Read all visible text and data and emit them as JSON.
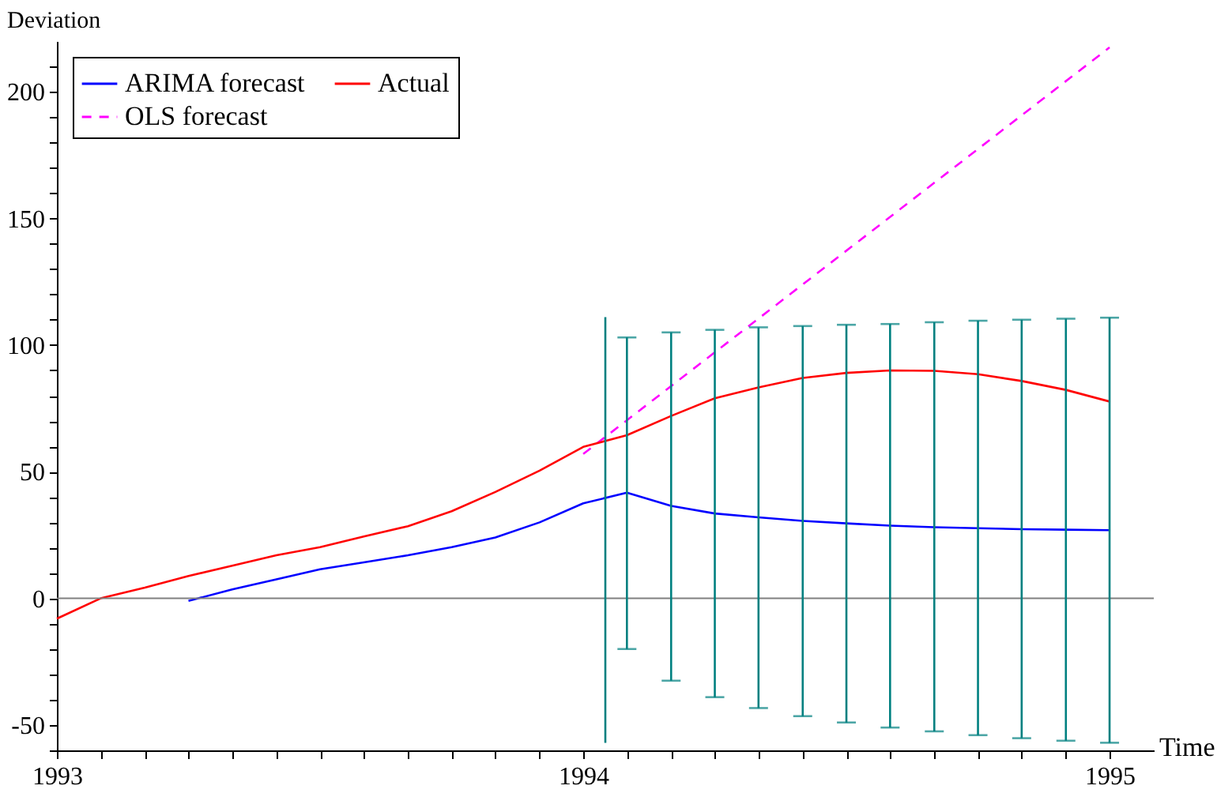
{
  "chart_data": {
    "type": "line",
    "xlabel": "Time",
    "ylabel": "Deviation",
    "xlim": [
      1993,
      1995.084
    ],
    "ylim": [
      -60,
      220
    ],
    "xticks": [
      1993,
      {
        "value": 1993.083,
        "label": null
      },
      {
        "value": 1993.167,
        "label": null
      },
      {
        "value": 1993.25,
        "label": null
      },
      {
        "value": 1993.333,
        "label": null
      },
      {
        "value": 1993.417,
        "label": null
      },
      {
        "value": 1993.5,
        "label": null
      },
      {
        "value": 1993.583,
        "label": null
      },
      {
        "value": 1993.667,
        "label": null
      },
      {
        "value": 1993.75,
        "label": null
      },
      {
        "value": 1993.833,
        "label": null
      },
      {
        "value": 1993.917,
        "label": null
      },
      1994,
      {
        "value": 1994.083,
        "label": null
      },
      {
        "value": 1994.167,
        "label": null
      },
      {
        "value": 1994.25,
        "label": null
      },
      {
        "value": 1994.333,
        "label": null
      },
      {
        "value": 1994.417,
        "label": null
      },
      {
        "value": 1994.5,
        "label": null
      },
      {
        "value": 1994.583,
        "label": null
      },
      {
        "value": 1994.667,
        "label": null
      },
      {
        "value": 1994.75,
        "label": null
      },
      {
        "value": 1994.833,
        "label": null
      },
      {
        "value": 1994.917,
        "label": null
      },
      1995
    ],
    "yticks": [
      {
        "value": -60,
        "label": null
      },
      -50,
      {
        "value": -40,
        "label": null
      },
      {
        "value": -30,
        "label": null
      },
      {
        "value": -20,
        "label": null
      },
      {
        "value": -10,
        "label": null
      },
      0,
      {
        "value": 10,
        "label": null
      },
      {
        "value": 20,
        "label": null
      },
      {
        "value": 30,
        "label": null
      },
      {
        "value": 40,
        "label": null
      },
      50,
      {
        "value": 60,
        "label": null
      },
      {
        "value": 70,
        "label": null
      },
      {
        "value": 80,
        "label": null
      },
      {
        "value": 90,
        "label": null
      },
      100,
      {
        "value": 110,
        "label": null
      },
      {
        "value": 120,
        "label": null
      },
      {
        "value": 130,
        "label": null
      },
      {
        "value": 140,
        "label": null
      },
      150,
      {
        "value": 160,
        "label": null
      },
      {
        "value": 170,
        "label": null
      },
      {
        "value": 180,
        "label": null
      },
      {
        "value": 190,
        "label": null
      },
      200,
      {
        "value": 210,
        "label": null
      }
    ],
    "grid": false,
    "legend": "top left",
    "series": [
      {
        "name": "ARIMA forecast",
        "color": "#0000ff",
        "line_style": "solid",
        "x": [
          1993.25,
          1993.333,
          1993.417,
          1993.5,
          1993.583,
          1993.667,
          1993.75,
          1993.833,
          1993.917,
          1994,
          1994.083,
          1994.167,
          1994.25,
          1994.333,
          1994.417,
          1994.5,
          1994.583,
          1994.667,
          1994.75,
          1994.833,
          1994.917,
          1995
        ],
        "values": [
          -1,
          3.5,
          7.5,
          11.5,
          14.2,
          17,
          20.2,
          24,
          30,
          37.5,
          41.7,
          36.5,
          33.5,
          32,
          30.6,
          29.6,
          28.7,
          28.1,
          27.7,
          27.3,
          27.1,
          26.9
        ],
        "errors": [
          null,
          null,
          null,
          null,
          null,
          null,
          null,
          null,
          null,
          null,
          [
            -20,
            103
          ],
          [
            -32.5,
            105
          ],
          [
            -39,
            106
          ],
          [
            -43.3,
            107
          ],
          [
            -46.5,
            107.5
          ],
          [
            -49,
            108
          ],
          [
            -51,
            108.3
          ],
          [
            -52.5,
            109
          ],
          [
            -54,
            109.6
          ],
          [
            -55.2,
            110
          ],
          [
            -56.2,
            110.4
          ],
          [
            -57,
            110.8
          ]
        ]
      },
      {
        "name": "OLS forecast",
        "color": "#ff00ff",
        "line_style": "dashed",
        "x": [
          1994,
          1995
        ],
        "values": [
          57,
          217.5
        ]
      },
      {
        "name": "Actual",
        "color": "#ff0000",
        "line_style": "solid",
        "x": [
          1993,
          1993.083,
          1993.167,
          1993.25,
          1993.333,
          1993.417,
          1993.5,
          1993.583,
          1993.667,
          1993.75,
          1993.833,
          1993.917,
          1994,
          1994.083,
          1994.167,
          1994.25,
          1994.333,
          1994.417,
          1994.5,
          1994.583,
          1994.667,
          1994.75,
          1994.833,
          1994.917,
          1995
        ],
        "values": [
          -8,
          0,
          4.2,
          8.8,
          12.9,
          17,
          20.2,
          24.4,
          28.5,
          34.4,
          42,
          50.4,
          59.8,
          64.4,
          72,
          79,
          83.3,
          87,
          89,
          90,
          89.8,
          88.5,
          85.8,
          82.3,
          77.7
        ]
      },
      {
        "color": "#008080",
        "line_style": "solid",
        "x": [
          1994.042,
          1994.042
        ],
        "values": [
          -57,
          111
        ]
      }
    ],
    "ref_lines": [
      {
        "axis": "y",
        "value": 0,
        "color": "#808080",
        "line_style": "solid"
      }
    ]
  }
}
